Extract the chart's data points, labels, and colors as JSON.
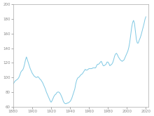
{
  "title": "",
  "xlabel": "",
  "ylabel": "",
  "xlim": [
    1880,
    2023
  ],
  "ylim": [
    60,
    200
  ],
  "xticks": [
    1880,
    1900,
    1920,
    1940,
    1960,
    1980,
    2000,
    2020
  ],
  "yticks": [
    60,
    80,
    100,
    120,
    140,
    160,
    180,
    200
  ],
  "line_color": "#7ec8e3",
  "line_width": 0.7,
  "background_color": "#ffffff",
  "years": [
    1880,
    1881,
    1882,
    1883,
    1884,
    1885,
    1886,
    1887,
    1888,
    1889,
    1890,
    1891,
    1892,
    1893,
    1894,
    1895,
    1896,
    1897,
    1898,
    1899,
    1900,
    1901,
    1902,
    1903,
    1904,
    1905,
    1906,
    1907,
    1908,
    1909,
    1910,
    1911,
    1912,
    1913,
    1914,
    1915,
    1916,
    1917,
    1918,
    1919,
    1920,
    1921,
    1922,
    1923,
    1924,
    1925,
    1926,
    1927,
    1928,
    1929,
    1930,
    1931,
    1932,
    1933,
    1934,
    1935,
    1936,
    1937,
    1938,
    1939,
    1940,
    1941,
    1942,
    1943,
    1944,
    1945,
    1946,
    1947,
    1948,
    1949,
    1950,
    1951,
    1952,
    1953,
    1954,
    1955,
    1956,
    1957,
    1958,
    1959,
    1960,
    1961,
    1962,
    1963,
    1964,
    1965,
    1966,
    1967,
    1968,
    1969,
    1970,
    1971,
    1972,
    1973,
    1974,
    1975,
    1976,
    1977,
    1978,
    1979,
    1980,
    1981,
    1982,
    1983,
    1984,
    1985,
    1986,
    1987,
    1988,
    1989,
    1990,
    1991,
    1992,
    1993,
    1994,
    1995,
    1996,
    1997,
    1998,
    1999,
    2000,
    2001,
    2002,
    2003,
    2004,
    2005,
    2006,
    2007,
    2008,
    2009,
    2010,
    2011,
    2012,
    2013,
    2014,
    2015,
    2016,
    2017,
    2018,
    2019,
    2020
  ],
  "values": [
    91,
    93,
    95,
    96,
    97,
    98,
    100,
    103,
    107,
    109,
    110,
    113,
    118,
    124,
    128,
    124,
    120,
    116,
    112,
    109,
    106,
    104,
    102,
    101,
    100,
    100,
    101,
    100,
    98,
    97,
    95,
    93,
    90,
    87,
    84,
    80,
    77,
    74,
    71,
    68,
    66,
    68,
    71,
    74,
    76,
    77,
    79,
    80,
    80,
    79,
    77,
    74,
    71,
    67,
    65,
    64,
    64,
    65,
    65,
    66,
    67,
    69,
    72,
    76,
    80,
    84,
    91,
    96,
    99,
    100,
    101,
    103,
    104,
    105,
    107,
    109,
    111,
    110,
    110,
    111,
    112,
    112,
    112,
    112,
    113,
    113,
    113,
    113,
    116,
    118,
    118,
    119,
    121,
    122,
    119,
    116,
    116,
    117,
    118,
    121,
    121,
    119,
    116,
    117,
    118,
    120,
    124,
    129,
    132,
    133,
    131,
    128,
    126,
    124,
    123,
    122,
    123,
    124,
    127,
    130,
    133,
    136,
    141,
    148,
    158,
    168,
    175,
    178,
    174,
    163,
    152,
    147,
    147,
    151,
    154,
    158,
    163,
    168,
    173,
    179,
    183
  ]
}
